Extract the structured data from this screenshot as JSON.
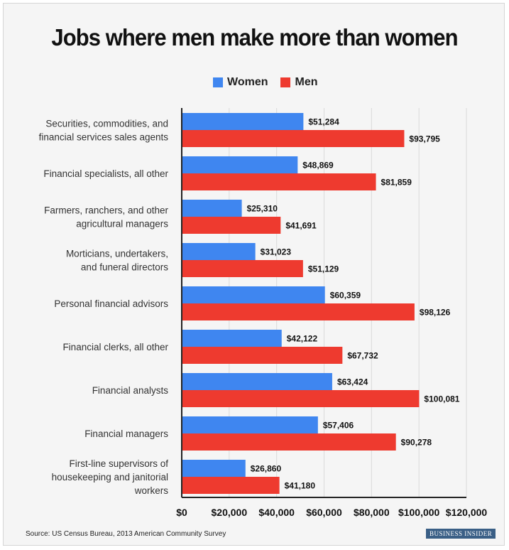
{
  "colors": {
    "women": "#3f86f0",
    "men": "#ee3a2f",
    "grid": "#d9d9d9",
    "axis": "#222222"
  },
  "title": "Jobs where men make more than women",
  "source": "Source: US Census Bureau, 2013 American Community Survey",
  "brand": "BUSINESS INSIDER",
  "chart_data": {
    "type": "bar",
    "orientation": "horizontal",
    "title": "Jobs where men make more than women",
    "categories": [
      [
        "Securities, commodities, and",
        "financial services sales agents"
      ],
      [
        "Financial specialists, all other"
      ],
      [
        "Farmers, ranchers, and other",
        "agricultural managers"
      ],
      [
        "Morticians, undertakers,",
        "and funeral directors"
      ],
      [
        "Personal financial advisors"
      ],
      [
        "Financial clerks, all other"
      ],
      [
        "Financial analysts"
      ],
      [
        "Financial managers"
      ],
      [
        "First-line supervisors of",
        "housekeeping and janitorial",
        "workers"
      ]
    ],
    "series": [
      {
        "name": "Women",
        "values": [
          51284,
          48869,
          25310,
          31023,
          60359,
          42122,
          63424,
          57406,
          26860
        ],
        "labels": [
          "$51,284",
          "$48,869",
          "$25,310",
          "$31,023",
          "$60,359",
          "$42,122",
          "$63,424",
          "$57,406",
          "$26,860"
        ]
      },
      {
        "name": "Men",
        "values": [
          93795,
          81859,
          41691,
          51129,
          98126,
          67732,
          100081,
          90278,
          41180
        ],
        "labels": [
          "$93,795",
          "$81,859",
          "$41,691",
          "$51,129",
          "$98,126",
          "$67,732",
          "$100,081",
          "$90,278",
          "$41,180"
        ]
      }
    ],
    "xlim": [
      0,
      120000
    ],
    "xticks": [
      0,
      20000,
      40000,
      60000,
      80000,
      100000,
      120000
    ],
    "xtick_labels": [
      "$0",
      "$20,000",
      "$40,000",
      "$60,000",
      "$80,000",
      "$100,000",
      "$120,000"
    ],
    "legend": "top",
    "grid": true
  }
}
